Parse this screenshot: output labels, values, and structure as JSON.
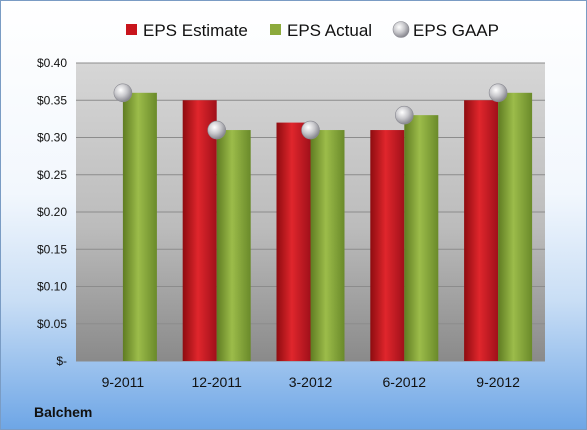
{
  "company": "Balchem",
  "colors": {
    "estimate": "#c8141c",
    "actual": "#8caa3c",
    "gaap": "#b8b8c0"
  },
  "chart_data": {
    "type": "bar",
    "categories": [
      "9-2011",
      "12-2011",
      "3-2012",
      "6-2012",
      "9-2012"
    ],
    "series": [
      {
        "name": "EPS Estimate",
        "kind": "bar",
        "values": [
          null,
          0.35,
          0.32,
          0.31,
          0.35
        ]
      },
      {
        "name": "EPS Actual",
        "kind": "bar",
        "values": [
          0.36,
          0.31,
          0.31,
          0.33,
          0.36
        ]
      },
      {
        "name": "EPS GAAP",
        "kind": "marker",
        "values": [
          0.36,
          0.31,
          0.31,
          0.33,
          0.36
        ]
      }
    ],
    "yticks": [
      "$-",
      "$0.05",
      "$0.10",
      "$0.15",
      "$0.20",
      "$0.25",
      "$0.30",
      "$0.35",
      "$0.40"
    ],
    "ylim": [
      0,
      0.4
    ],
    "legend_position": "top",
    "grid": true
  }
}
